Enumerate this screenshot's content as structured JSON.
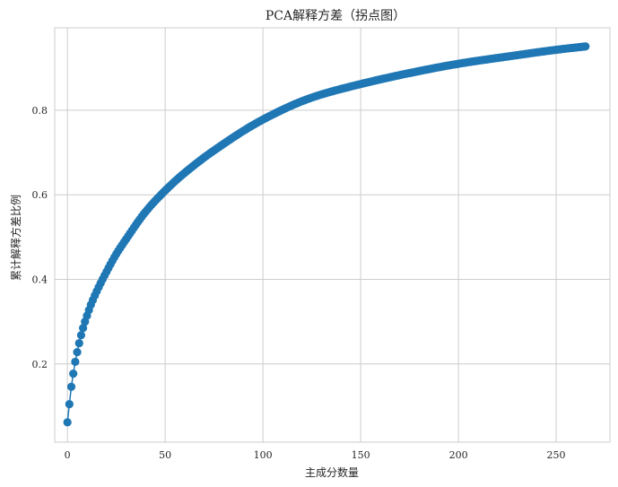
{
  "chart_data": {
    "type": "line",
    "title": "PCA解释方差（拐点图）",
    "xlabel": "主成分数量",
    "ylabel": "累计解释方差比例",
    "xlim": [
      -6.5,
      277.5
    ],
    "ylim": [
      0.015,
      0.995
    ],
    "x_ticks": [
      0,
      50,
      100,
      150,
      200,
      250
    ],
    "x_tick_labels": [
      "0",
      "50",
      "100",
      "150",
      "200",
      "250"
    ],
    "y_ticks": [
      0.2,
      0.4,
      0.6,
      0.8
    ],
    "y_tick_labels": [
      "0.2",
      "0.4",
      "0.6",
      "0.8"
    ],
    "grid": true,
    "legend": "none",
    "marker": "circle",
    "color": "#1f77b4",
    "x_range": [
      0,
      265
    ],
    "series": [
      {
        "x": [
          0,
          1,
          2,
          3,
          4,
          5,
          6,
          7,
          8,
          9,
          10,
          12,
          15,
          20,
          25,
          30,
          40,
          50,
          60,
          75,
          100,
          125,
          150,
          175,
          200,
          225,
          250,
          265
        ],
        "values": [
          0.062,
          0.105,
          0.146,
          0.177,
          0.205,
          0.228,
          0.249,
          0.268,
          0.285,
          0.3,
          0.314,
          0.34,
          0.372,
          0.418,
          0.46,
          0.495,
          0.56,
          0.61,
          0.652,
          0.705,
          0.778,
          0.83,
          0.862,
          0.888,
          0.91,
          0.927,
          0.943,
          0.951
        ]
      }
    ]
  }
}
